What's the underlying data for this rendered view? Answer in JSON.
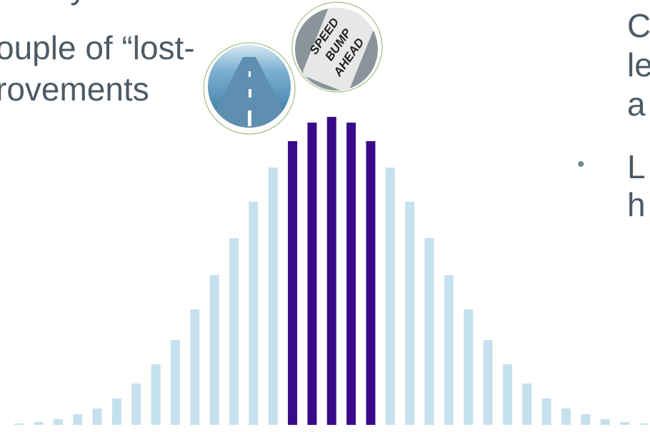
{
  "slide": {
    "left_text": [
      "ectory",
      "ouple of “lost-",
      "rovements"
    ],
    "right_text": [
      "C",
      "le",
      "a",
      "L",
      "h"
    ],
    "bullet": "•",
    "sign_text": [
      "SPEED",
      "BUMP",
      "AHEAD"
    ]
  },
  "chart_data": {
    "type": "bar",
    "values": [
      2,
      4,
      8,
      15,
      23,
      37,
      58,
      85,
      119,
      162,
      210,
      262,
      313,
      361,
      398,
      424,
      432,
      424,
      398,
      361,
      313,
      262,
      210,
      162,
      119,
      85,
      58,
      37,
      23,
      15,
      8,
      4,
      2
    ],
    "colors": [
      "#c6e1ee",
      "#c6e1ee",
      "#c6e1ee",
      "#c6e1ee",
      "#c6e1ee",
      "#c6e1ee",
      "#c6e1ee",
      "#c6e1ee",
      "#c6e1ee",
      "#c6e1ee",
      "#c6e1ee",
      "#c6e1ee",
      "#c6e1ee",
      "#c6e1ee",
      "#3b0a8a",
      "#3b0a8a",
      "#3b0a8a",
      "#3b0a8a",
      "#3b0a8a",
      "#c6e1ee",
      "#c6e1ee",
      "#c6e1ee",
      "#c6e1ee",
      "#c6e1ee",
      "#c6e1ee",
      "#c6e1ee",
      "#c6e1ee",
      "#c6e1ee",
      "#c6e1ee",
      "#c6e1ee",
      "#c6e1ee",
      "#c6e1ee",
      "#c6e1ee"
    ],
    "ylim": [
      0,
      432
    ]
  }
}
